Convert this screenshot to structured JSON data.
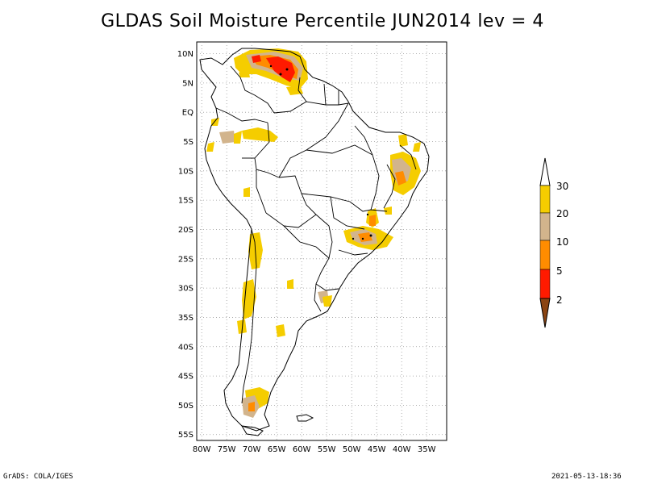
{
  "title": "GLDAS Soil Moisture Percentile JUN2014 lev = 4",
  "footer": {
    "left": "GrADS: COLA/IGES",
    "right": "2021-05-13-18:36"
  },
  "axes": {
    "lat_labels": [
      "10N",
      "5N",
      "EQ",
      "5S",
      "10S",
      "15S",
      "20S",
      "25S",
      "30S",
      "35S",
      "40S",
      "45S",
      "50S",
      "55S"
    ],
    "lon_labels": [
      "80W",
      "75W",
      "70W",
      "65W",
      "60W",
      "55W",
      "50W",
      "45W",
      "40W",
      "35W"
    ],
    "lat_values": [
      10,
      5,
      0,
      -5,
      -10,
      -15,
      -20,
      -25,
      -30,
      -35,
      -40,
      -45,
      -50,
      -55
    ],
    "lon_values": [
      -80,
      -75,
      -70,
      -65,
      -60,
      -55,
      -50,
      -45,
      -40,
      -35
    ],
    "lon_range": [
      -81,
      -31
    ],
    "lat_range": [
      -56,
      12
    ],
    "grid": true
  },
  "legend": {
    "labels": [
      "30",
      "20",
      "10",
      "5",
      "2"
    ],
    "colors": {
      "above30": "#ffffff",
      "20-30": "#f5cd00",
      "10-20": "#d2b48c",
      "5-10": "#ff8c00",
      "2-5": "#ff1a00",
      "below2": "#8b4513"
    }
  },
  "colors": {
    "yellow": "#f5cd00",
    "tan": "#d2b48c",
    "orange": "#ff8c00",
    "red": "#ff1a00",
    "black": "#000000"
  }
}
